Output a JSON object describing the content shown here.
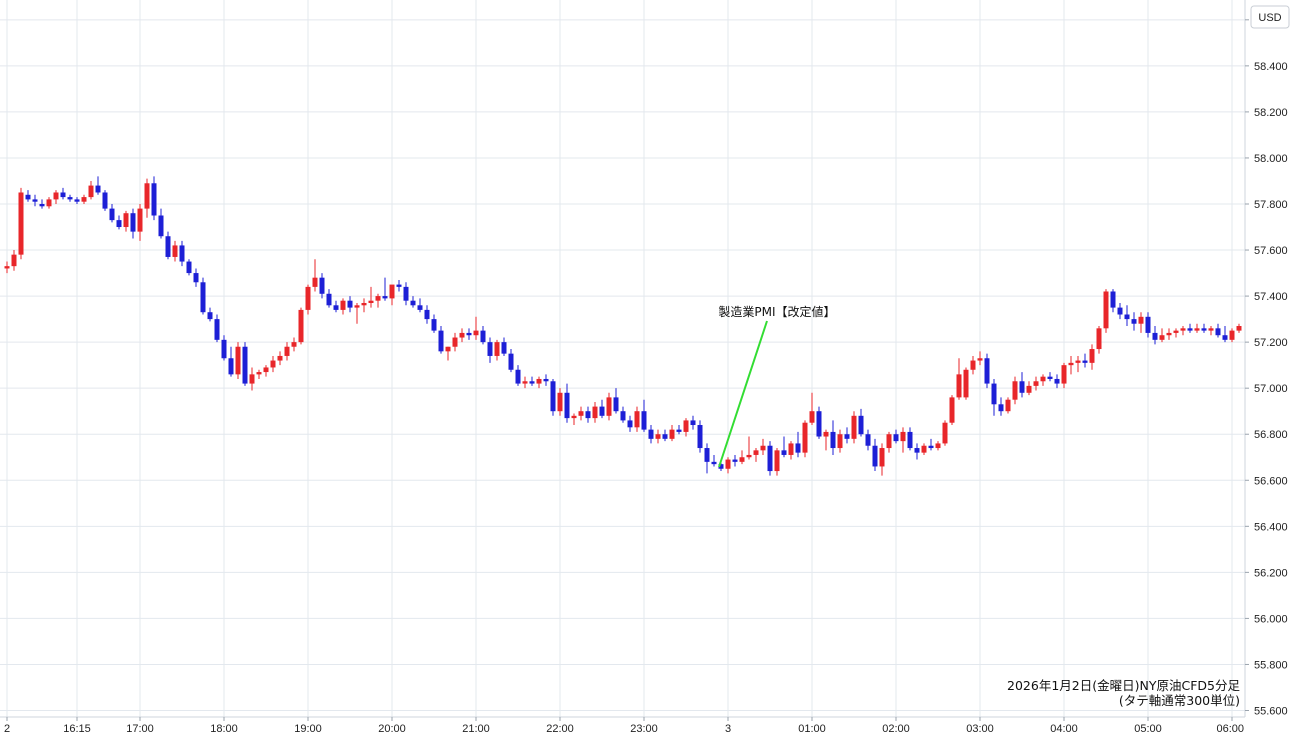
{
  "currency_button": "USD",
  "chart_data": {
    "type": "candlestick",
    "title": "2026年1月2日(金曜日)NY原油CFD5分足",
    "subtitle": "(タテ軸通常300単位)",
    "currency": "USD",
    "ylim": [
      55.6,
      58.66
    ],
    "y_ticks": [
      "58.600",
      "58.400",
      "58.200",
      "58.000",
      "57.800",
      "57.600",
      "57.400",
      "57.200",
      "57.000",
      "56.800",
      "56.600",
      "56.400",
      "56.200",
      "56.000",
      "55.800",
      "55.600"
    ],
    "x_ticks": [
      {
        "label": "2",
        "bar": 0
      },
      {
        "label": "16:15",
        "bar": 10
      },
      {
        "label": "17:00",
        "bar": 19
      },
      {
        "label": "18:00",
        "bar": 31
      },
      {
        "label": "19:00",
        "bar": 43
      },
      {
        "label": "20:00",
        "bar": 55
      },
      {
        "label": "21:00",
        "bar": 67
      },
      {
        "label": "22:00",
        "bar": 79
      },
      {
        "label": "23:00",
        "bar": 91
      },
      {
        "label": "3",
        "bar": 103
      },
      {
        "label": "01:00",
        "bar": 115
      },
      {
        "label": "02:00",
        "bar": 127
      },
      {
        "label": "03:00",
        "bar": 139
      },
      {
        "label": "04:00",
        "bar": 151
      },
      {
        "label": "05:00",
        "bar": 163
      },
      {
        "label": "06:00",
        "bar": 175
      }
    ],
    "annotation": {
      "text": "製造業PMI【改定値】",
      "bar": 100
    },
    "colors": {
      "up": "#e8262a",
      "down": "#1d1fd6",
      "annotation_line": "#33dd33",
      "grid": "#e3e8ee"
    },
    "candles": [
      [
        57.52,
        57.55,
        57.5,
        57.53
      ],
      [
        57.53,
        57.6,
        57.51,
        57.58
      ],
      [
        57.58,
        57.87,
        57.56,
        57.85
      ],
      [
        57.84,
        57.86,
        57.81,
        57.82
      ],
      [
        57.82,
        57.84,
        57.79,
        57.81
      ],
      [
        57.8,
        57.82,
        57.78,
        57.79
      ],
      [
        57.79,
        57.83,
        57.78,
        57.82
      ],
      [
        57.82,
        57.86,
        57.8,
        57.85
      ],
      [
        57.85,
        57.87,
        57.82,
        57.83
      ],
      [
        57.83,
        57.84,
        57.81,
        57.82
      ],
      [
        57.82,
        57.83,
        57.8,
        57.81
      ],
      [
        57.81,
        57.84,
        57.8,
        57.83
      ],
      [
        57.83,
        57.9,
        57.82,
        57.88
      ],
      [
        57.88,
        57.92,
        57.84,
        57.85
      ],
      [
        57.85,
        57.86,
        57.77,
        57.78
      ],
      [
        57.78,
        57.8,
        57.72,
        57.73
      ],
      [
        57.73,
        57.75,
        57.69,
        57.7
      ],
      [
        57.7,
        57.77,
        57.68,
        57.76
      ],
      [
        57.76,
        57.78,
        57.65,
        57.68
      ],
      [
        57.68,
        57.8,
        57.64,
        57.78
      ],
      [
        57.78,
        57.91,
        57.74,
        57.89
      ],
      [
        57.89,
        57.92,
        57.73,
        57.75
      ],
      [
        57.75,
        57.78,
        57.65,
        57.66
      ],
      [
        57.66,
        57.68,
        57.56,
        57.57
      ],
      [
        57.57,
        57.64,
        57.55,
        57.62
      ],
      [
        57.62,
        57.64,
        57.53,
        57.55
      ],
      [
        57.55,
        57.56,
        57.49,
        57.5
      ],
      [
        57.5,
        57.52,
        57.44,
        57.46
      ],
      [
        57.46,
        57.48,
        57.32,
        57.33
      ],
      [
        57.33,
        57.35,
        57.29,
        57.3
      ],
      [
        57.3,
        57.32,
        57.2,
        57.21
      ],
      [
        57.21,
        57.23,
        57.12,
        57.13
      ],
      [
        57.13,
        57.18,
        57.05,
        57.06
      ],
      [
        57.06,
        57.2,
        57.04,
        57.18
      ],
      [
        57.18,
        57.2,
        57.01,
        57.02
      ],
      [
        57.02,
        57.09,
        56.99,
        57.06
      ],
      [
        57.06,
        57.08,
        57.04,
        57.07
      ],
      [
        57.07,
        57.1,
        57.05,
        57.09
      ],
      [
        57.09,
        57.14,
        57.07,
        57.12
      ],
      [
        57.12,
        57.16,
        57.1,
        57.14
      ],
      [
        57.14,
        57.2,
        57.12,
        57.18
      ],
      [
        57.18,
        57.22,
        57.16,
        57.2
      ],
      [
        57.2,
        57.35,
        57.19,
        57.34
      ],
      [
        57.34,
        57.45,
        57.32,
        57.44
      ],
      [
        57.44,
        57.56,
        57.42,
        57.48
      ],
      [
        57.48,
        57.5,
        57.39,
        57.41
      ],
      [
        57.41,
        57.43,
        57.35,
        57.36
      ],
      [
        57.36,
        57.38,
        57.33,
        57.34
      ],
      [
        57.34,
        57.39,
        57.32,
        57.38
      ],
      [
        57.38,
        57.4,
        57.33,
        57.35
      ],
      [
        57.35,
        57.37,
        57.28,
        57.36
      ],
      [
        57.36,
        57.39,
        57.33,
        57.37
      ],
      [
        57.37,
        57.44,
        57.35,
        57.38
      ],
      [
        57.38,
        57.41,
        57.35,
        57.4
      ],
      [
        57.4,
        57.48,
        57.38,
        57.39
      ],
      [
        57.39,
        57.42,
        57.36,
        57.45
      ],
      [
        57.45,
        57.47,
        57.42,
        57.44
      ],
      [
        57.44,
        57.46,
        57.36,
        57.38
      ],
      [
        57.38,
        57.4,
        57.35,
        57.36
      ],
      [
        57.36,
        57.39,
        57.33,
        57.34
      ],
      [
        57.34,
        57.36,
        57.28,
        57.3
      ],
      [
        57.3,
        57.32,
        57.24,
        57.25
      ],
      [
        57.25,
        57.27,
        57.15,
        57.16
      ],
      [
        57.16,
        57.18,
        57.12,
        57.18
      ],
      [
        57.18,
        57.24,
        57.16,
        57.22
      ],
      [
        57.22,
        57.26,
        57.2,
        57.24
      ],
      [
        57.24,
        57.26,
        57.21,
        57.23
      ],
      [
        57.23,
        57.31,
        57.21,
        57.25
      ],
      [
        57.25,
        57.27,
        57.19,
        57.2
      ],
      [
        57.2,
        57.22,
        57.11,
        57.14
      ],
      [
        57.14,
        57.21,
        57.12,
        57.2
      ],
      [
        57.2,
        57.22,
        57.14,
        57.15
      ],
      [
        57.15,
        57.17,
        57.07,
        57.08
      ],
      [
        57.08,
        57.1,
        57.01,
        57.02
      ],
      [
        57.02,
        57.05,
        57.0,
        57.03
      ],
      [
        57.03,
        57.05,
        57.01,
        57.02
      ],
      [
        57.02,
        57.05,
        57.0,
        57.04
      ],
      [
        57.04,
        57.06,
        57.01,
        57.03
      ],
      [
        57.03,
        57.04,
        56.88,
        56.9
      ],
      [
        56.9,
        57.0,
        56.88,
        56.98
      ],
      [
        56.98,
        57.02,
        56.85,
        56.87
      ],
      [
        56.87,
        56.89,
        56.84,
        56.88
      ],
      [
        56.88,
        56.92,
        56.86,
        56.9
      ],
      [
        56.9,
        56.92,
        56.85,
        56.87
      ],
      [
        56.87,
        56.94,
        56.85,
        56.92
      ],
      [
        56.92,
        56.95,
        56.87,
        56.88
      ],
      [
        56.88,
        56.98,
        56.86,
        56.96
      ],
      [
        56.96,
        57.0,
        56.89,
        56.9
      ],
      [
        56.9,
        56.92,
        56.85,
        56.86
      ],
      [
        56.86,
        56.88,
        56.81,
        56.83
      ],
      [
        56.83,
        56.92,
        56.81,
        56.9
      ],
      [
        56.9,
        56.95,
        56.81,
        56.82
      ],
      [
        56.82,
        56.84,
        56.76,
        56.78
      ],
      [
        56.78,
        56.82,
        56.76,
        56.8
      ],
      [
        56.8,
        56.82,
        56.77,
        56.78
      ],
      [
        56.78,
        56.84,
        56.77,
        56.82
      ],
      [
        56.82,
        56.84,
        56.8,
        56.81
      ],
      [
        56.81,
        56.87,
        56.79,
        56.86
      ],
      [
        56.86,
        56.88,
        56.82,
        56.84
      ],
      [
        56.84,
        56.86,
        56.72,
        56.74
      ],
      [
        56.74,
        56.76,
        56.63,
        56.68
      ],
      [
        56.68,
        56.71,
        56.66,
        56.67
      ],
      [
        56.67,
        56.69,
        56.64,
        56.65
      ],
      [
        56.65,
        56.7,
        56.63,
        56.69
      ],
      [
        56.69,
        56.71,
        56.66,
        56.68
      ],
      [
        56.68,
        56.73,
        56.67,
        56.7
      ],
      [
        56.7,
        56.79,
        56.69,
        56.71
      ],
      [
        56.71,
        56.74,
        56.68,
        56.73
      ],
      [
        56.73,
        56.78,
        56.71,
        56.75
      ],
      [
        56.75,
        56.77,
        56.62,
        56.64
      ],
      [
        56.64,
        56.74,
        56.62,
        56.73
      ],
      [
        56.73,
        56.79,
        56.7,
        56.71
      ],
      [
        56.71,
        56.77,
        56.69,
        56.76
      ],
      [
        56.76,
        56.81,
        56.7,
        56.72
      ],
      [
        56.72,
        56.86,
        56.7,
        56.85
      ],
      [
        56.85,
        56.98,
        56.84,
        56.9
      ],
      [
        56.9,
        56.92,
        56.78,
        56.79
      ],
      [
        56.79,
        56.82,
        56.73,
        56.81
      ],
      [
        56.81,
        56.86,
        56.71,
        56.74
      ],
      [
        56.74,
        56.82,
        56.72,
        56.8
      ],
      [
        56.8,
        56.83,
        56.76,
        56.78
      ],
      [
        56.78,
        56.9,
        56.76,
        56.88
      ],
      [
        56.88,
        56.91,
        56.79,
        56.8
      ],
      [
        56.8,
        56.82,
        56.73,
        56.75
      ],
      [
        56.75,
        56.78,
        56.64,
        56.66
      ],
      [
        56.66,
        56.76,
        56.62,
        56.74
      ],
      [
        56.74,
        56.81,
        56.72,
        56.8
      ],
      [
        56.8,
        56.82,
        56.76,
        56.77
      ],
      [
        56.77,
        56.83,
        56.72,
        56.81
      ],
      [
        56.81,
        56.83,
        56.73,
        56.74
      ],
      [
        56.74,
        56.76,
        56.69,
        56.72
      ],
      [
        56.72,
        56.76,
        56.71,
        56.75
      ],
      [
        56.75,
        56.78,
        56.73,
        56.74
      ],
      [
        56.74,
        56.77,
        56.73,
        56.76
      ],
      [
        56.76,
        56.86,
        56.75,
        56.85
      ],
      [
        56.85,
        56.97,
        56.84,
        56.96
      ],
      [
        56.96,
        57.13,
        56.95,
        57.06
      ],
      [
        56.96,
        57.09,
        56.95,
        57.08
      ],
      [
        57.08,
        57.14,
        57.06,
        57.12
      ],
      [
        57.12,
        57.16,
        57.1,
        57.13
      ],
      [
        57.13,
        57.15,
        57.0,
        57.02
      ],
      [
        57.02,
        57.04,
        56.88,
        56.93
      ],
      [
        56.93,
        56.96,
        56.88,
        56.9
      ],
      [
        56.9,
        56.96,
        56.89,
        56.95
      ],
      [
        56.95,
        57.05,
        56.93,
        57.03
      ],
      [
        57.03,
        57.07,
        56.96,
        56.98
      ],
      [
        56.98,
        57.03,
        56.97,
        57.01
      ],
      [
        57.01,
        57.05,
        56.99,
        57.03
      ],
      [
        57.03,
        57.06,
        57.01,
        57.05
      ],
      [
        57.05,
        57.07,
        57.03,
        57.04
      ],
      [
        57.04,
        57.06,
        57.0,
        57.02
      ],
      [
        57.02,
        57.11,
        57.0,
        57.1
      ],
      [
        57.1,
        57.14,
        57.06,
        57.11
      ],
      [
        57.11,
        57.14,
        57.07,
        57.12
      ],
      [
        57.12,
        57.15,
        57.09,
        57.11
      ],
      [
        57.11,
        57.19,
        57.08,
        57.17
      ],
      [
        57.17,
        57.27,
        57.15,
        57.26
      ],
      [
        57.26,
        57.43,
        57.24,
        57.42
      ],
      [
        57.42,
        57.43,
        57.33,
        57.35
      ],
      [
        57.35,
        57.37,
        57.3,
        57.32
      ],
      [
        57.32,
        57.36,
        57.27,
        57.3
      ],
      [
        57.3,
        57.33,
        57.25,
        57.28
      ],
      [
        57.28,
        57.33,
        57.24,
        57.31
      ],
      [
        57.31,
        57.33,
        57.22,
        57.24
      ],
      [
        57.24,
        57.27,
        57.19,
        57.21
      ],
      [
        57.21,
        57.26,
        57.2,
        57.23
      ],
      [
        57.23,
        57.26,
        57.21,
        57.24
      ],
      [
        57.24,
        57.26,
        57.22,
        57.25
      ],
      [
        57.25,
        57.27,
        57.23,
        57.26
      ],
      [
        57.26,
        57.28,
        57.24,
        57.25
      ],
      [
        57.25,
        57.28,
        57.24,
        57.26
      ],
      [
        57.26,
        57.28,
        57.24,
        57.25
      ],
      [
        57.25,
        57.27,
        57.23,
        57.26
      ],
      [
        57.26,
        57.28,
        57.22,
        57.23
      ],
      [
        57.23,
        57.27,
        57.2,
        57.21
      ],
      [
        57.21,
        57.26,
        57.2,
        57.25
      ],
      [
        57.25,
        57.28,
        57.24,
        57.27
      ],
      [
        57.27,
        57.29,
        57.25,
        57.28
      ]
    ]
  }
}
